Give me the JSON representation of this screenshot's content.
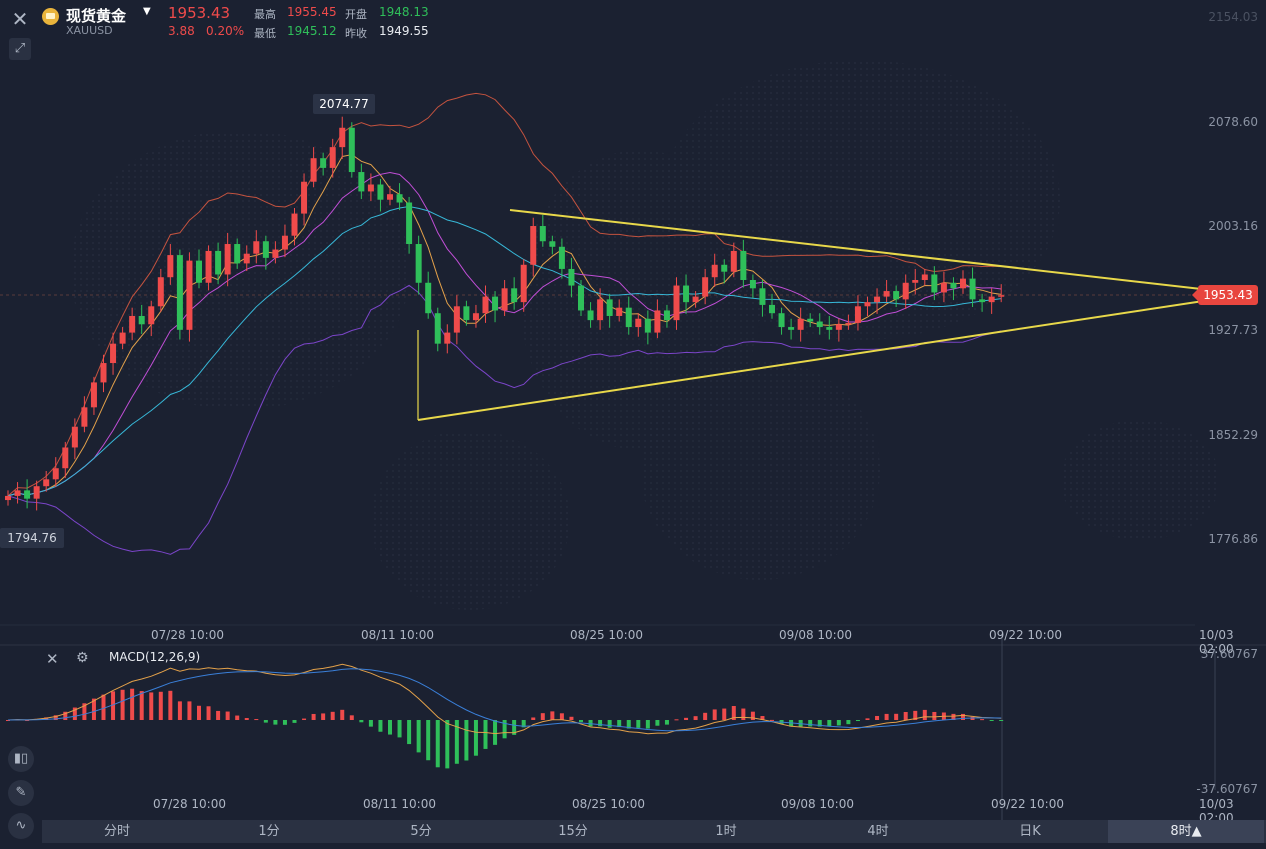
{
  "header": {
    "symbol_name": "现货黄金",
    "symbol_code": "XAUUSD",
    "last_price": "1953.43",
    "change": "3.88",
    "change_pct": "0.20%",
    "high_label": "最高",
    "high_value": "1955.45",
    "low_label": "最低",
    "low_value": "1945.12",
    "open_label": "开盘",
    "open_value": "1948.13",
    "prev_close_label": "昨收",
    "prev_close_value": "1949.55"
  },
  "price_axis": [
    "2154.03",
    "2078.60",
    "2003.16",
    "1927.73",
    "1852.29",
    "1776.86"
  ],
  "current_price_badge": "1953.43",
  "high_marker": "2074.77",
  "low_marker": "1794.76",
  "time_axis": [
    "07/28 10:00",
    "08/11 10:00",
    "08/25 10:00",
    "09/08 10:00",
    "09/22 10:00",
    "10/03 02:00"
  ],
  "macd": {
    "title": "MACD(12,26,9)",
    "top_value": "37.60767",
    "bottom_value": "-37.60767"
  },
  "tabs": [
    "分时",
    "1分",
    "5分",
    "15分",
    "1时",
    "4时",
    "日K",
    "8时▲"
  ],
  "active_tab": "8时▲",
  "colors": {
    "background": "#1b2131",
    "up": "#ef4b4b",
    "down": "#2fbf5a",
    "trendline": "#e8d84a"
  },
  "chart_data": {
    "type": "candlestick",
    "y_range": [
      1776.86,
      2154.03
    ],
    "close_series": [
      1808,
      1812,
      1806,
      1815,
      1820,
      1828,
      1843,
      1858,
      1872,
      1890,
      1904,
      1918,
      1926,
      1938,
      1932,
      1945,
      1966,
      1982,
      1928,
      1978,
      1962,
      1985,
      1968,
      1990,
      1976,
      1983,
      1992,
      1980,
      1986,
      1996,
      2012,
      2035,
      2052,
      2045,
      2060,
      2074,
      2042,
      2028,
      2033,
      2022,
      2026,
      2020,
      1990,
      1962,
      1940,
      1918,
      1926,
      1945,
      1935,
      1940,
      1952,
      1942,
      1958,
      1948,
      1975,
      2003,
      1992,
      1988,
      1972,
      1960,
      1942,
      1935,
      1950,
      1938,
      1944,
      1930,
      1936,
      1926,
      1942,
      1935,
      1960,
      1948,
      1952,
      1966,
      1975,
      1970,
      1985,
      1964,
      1958,
      1946,
      1940,
      1930,
      1928,
      1936,
      1934,
      1930,
      1928,
      1932,
      1933,
      1945,
      1948,
      1952,
      1956,
      1950,
      1962,
      1964,
      1968,
      1955,
      1962,
      1958,
      1965,
      1950,
      1948,
      1952,
      1953
    ]
  }
}
